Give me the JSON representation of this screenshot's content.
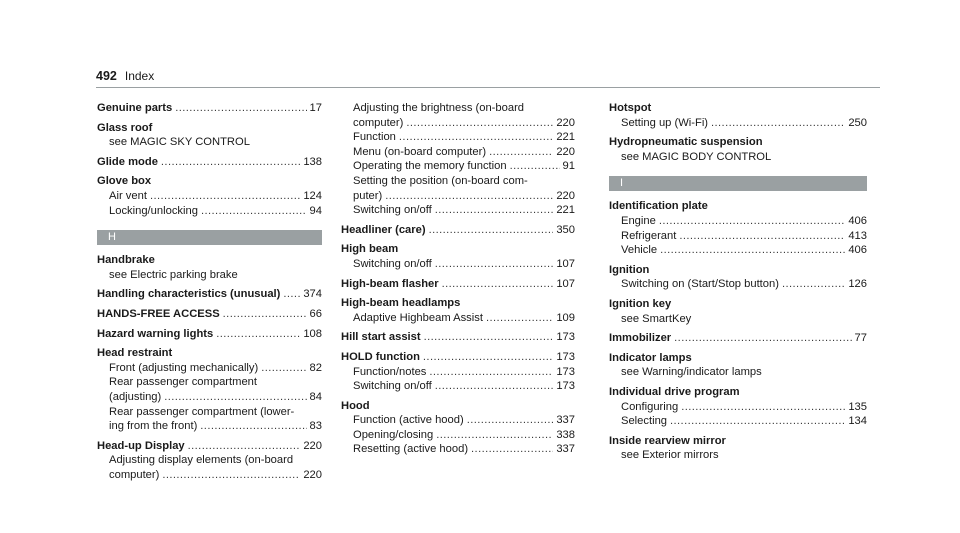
{
  "header": {
    "page_number": "492",
    "title": "Index"
  },
  "columns": [
    [
      {
        "type": "entry",
        "lines": [
          {
            "text": "Genuine parts",
            "page": "17"
          }
        ]
      },
      {
        "type": "entry",
        "lines": [
          {
            "text": "Glass roof"
          },
          {
            "text": "see MAGIC SKY CONTROL"
          }
        ]
      },
      {
        "type": "entry",
        "lines": [
          {
            "text": "Glide mode",
            "page": "138"
          }
        ]
      },
      {
        "type": "entry",
        "lines": [
          {
            "text": "Glove box"
          },
          {
            "text": "Air vent",
            "page": "124"
          },
          {
            "text": "Locking/unlocking",
            "page": "94"
          }
        ]
      },
      {
        "type": "section",
        "letter": "H"
      },
      {
        "type": "entry",
        "lines": [
          {
            "text": "Handbrake"
          },
          {
            "text": "see Electric parking brake"
          }
        ]
      },
      {
        "type": "entry",
        "lines": [
          {
            "text": "Handling characteristics (unusual)",
            "page": "374"
          }
        ]
      },
      {
        "type": "entry",
        "lines": [
          {
            "text": "HANDS-FREE ACCESS",
            "page": "66"
          }
        ]
      },
      {
        "type": "entry",
        "lines": [
          {
            "text": "Hazard warning lights",
            "page": "108"
          }
        ]
      },
      {
        "type": "entry",
        "lines": [
          {
            "text": "Head restraint"
          },
          {
            "text": "Front (adjusting mechanically)",
            "page": "82"
          },
          {
            "text": "Rear passenger compartment"
          },
          {
            "text": "(adjusting)",
            "page": "84"
          },
          {
            "text": "Rear passenger compartment (lower-"
          },
          {
            "text": "ing from the front)",
            "page": "83"
          }
        ]
      },
      {
        "type": "entry",
        "lines": [
          {
            "text": "Head-up Display",
            "page": "220"
          },
          {
            "text": "Adjusting display elements (on-board"
          },
          {
            "text": "computer)",
            "page": "220"
          }
        ]
      }
    ],
    [
      {
        "type": "cont",
        "lines": [
          {
            "text": "Adjusting the brightness (on-board"
          },
          {
            "text": "computer)",
            "page": "220"
          },
          {
            "text": "Function",
            "page": "221"
          },
          {
            "text": "Menu (on-board computer)",
            "page": "220"
          },
          {
            "text": "Operating the memory function",
            "page": "91"
          },
          {
            "text": "Setting the position (on-board com-"
          },
          {
            "text": "puter)",
            "page": "220"
          },
          {
            "text": "Switching on/off",
            "page": "221"
          }
        ]
      },
      {
        "type": "entry",
        "lines": [
          {
            "text": "Headliner (care)",
            "page": "350"
          }
        ]
      },
      {
        "type": "entry",
        "lines": [
          {
            "text": "High beam"
          },
          {
            "text": "Switching on/off",
            "page": "107"
          }
        ]
      },
      {
        "type": "entry",
        "lines": [
          {
            "text": "High-beam flasher",
            "page": "107"
          }
        ]
      },
      {
        "type": "entry",
        "lines": [
          {
            "text": "High-beam headlamps"
          },
          {
            "text": "Adaptive Highbeam Assist",
            "page": "109"
          }
        ]
      },
      {
        "type": "entry",
        "lines": [
          {
            "text": "Hill start assist",
            "page": "173"
          }
        ]
      },
      {
        "type": "entry",
        "lines": [
          {
            "text": "HOLD function",
            "page": "173"
          },
          {
            "text": "Function/notes",
            "page": "173"
          },
          {
            "text": "Switching on/off",
            "page": "173"
          }
        ]
      },
      {
        "type": "entry",
        "lines": [
          {
            "text": "Hood"
          },
          {
            "text": "Function (active hood)",
            "page": "337"
          },
          {
            "text": "Opening/closing",
            "page": "338"
          },
          {
            "text": "Resetting (active hood)",
            "page": "337"
          }
        ]
      }
    ],
    [
      {
        "type": "entry",
        "lines": [
          {
            "text": "Hotspot"
          },
          {
            "text": "Setting up (Wi-Fi)",
            "page": "250"
          }
        ]
      },
      {
        "type": "entry",
        "lines": [
          {
            "text": "Hydropneumatic suspension"
          },
          {
            "text": "see MAGIC BODY CONTROL"
          }
        ]
      },
      {
        "type": "section",
        "letter": "I"
      },
      {
        "type": "entry",
        "lines": [
          {
            "text": "Identification plate"
          },
          {
            "text": "Engine",
            "page": "406"
          },
          {
            "text": "Refrigerant",
            "page": "413"
          },
          {
            "text": "Vehicle",
            "page": "406"
          }
        ]
      },
      {
        "type": "entry",
        "lines": [
          {
            "text": "Ignition"
          },
          {
            "text": "Switching on (Start/Stop button)",
            "page": "126"
          }
        ]
      },
      {
        "type": "entry",
        "lines": [
          {
            "text": "Ignition key"
          },
          {
            "text": "see SmartKey"
          }
        ]
      },
      {
        "type": "entry",
        "lines": [
          {
            "text": "Immobilizer",
            "page": "77"
          }
        ]
      },
      {
        "type": "entry",
        "lines": [
          {
            "text": "Indicator lamps"
          },
          {
            "text": "see Warning/indicator lamps"
          }
        ]
      },
      {
        "type": "entry",
        "lines": [
          {
            "text": "Individual drive program"
          },
          {
            "text": "Configuring",
            "page": "135"
          },
          {
            "text": "Selecting",
            "page": "134"
          }
        ]
      },
      {
        "type": "entry",
        "lines": [
          {
            "text": "Inside rearview mirror"
          },
          {
            "text": "see Exterior mirrors"
          }
        ]
      }
    ]
  ]
}
